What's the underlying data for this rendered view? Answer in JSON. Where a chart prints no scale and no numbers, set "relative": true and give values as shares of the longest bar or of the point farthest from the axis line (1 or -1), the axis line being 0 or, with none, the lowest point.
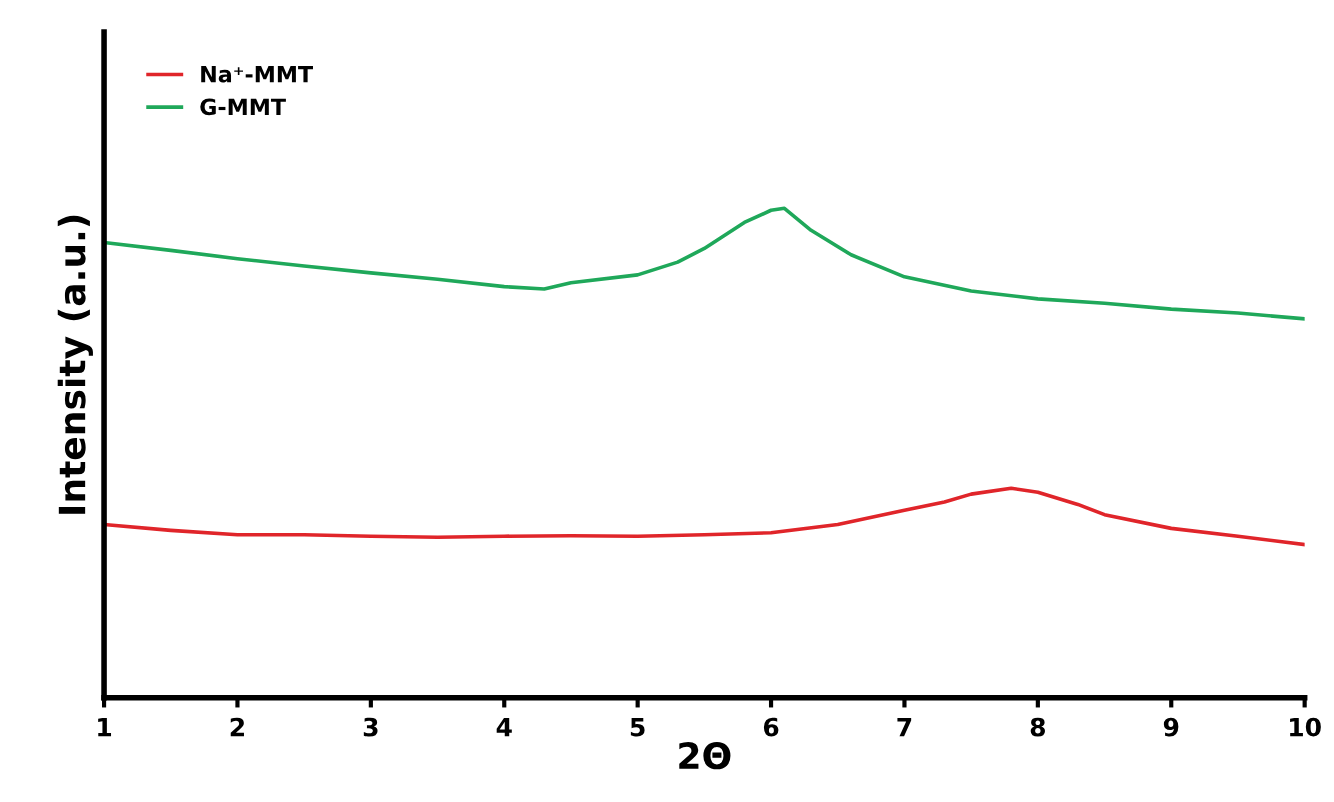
{
  "chart_data": {
    "type": "line",
    "relative": true,
    "xlabel": "2Θ",
    "ylabel": "Intensity (a.u.)",
    "xlim": [
      1,
      10
    ],
    "xticks": [
      1,
      2,
      3,
      4,
      5,
      6,
      7,
      8,
      9,
      10
    ],
    "legend": "top left",
    "grid": false,
    "series": [
      {
        "name": "Na⁺-MMT",
        "color": "#e0252a",
        "x": [
          1,
          1.5,
          2,
          2.5,
          3,
          3.5,
          4,
          4.5,
          5,
          5.5,
          6,
          6.5,
          7,
          7.3,
          7.5,
          7.8,
          8,
          8.3,
          8.5,
          9,
          9.5,
          10
        ],
        "values": [
          0.354,
          0.342,
          0.333,
          0.333,
          0.33,
          0.328,
          0.33,
          0.331,
          0.33,
          0.333,
          0.337,
          0.354,
          0.383,
          0.4,
          0.416,
          0.428,
          0.42,
          0.395,
          0.374,
          0.346,
          0.33,
          0.313
        ]
      },
      {
        "name": "G-MMT",
        "color": "#1fa85a",
        "x": [
          1,
          1.5,
          2,
          2.5,
          3,
          3.5,
          4,
          4.3,
          4.5,
          5,
          5.3,
          5.5,
          5.8,
          6,
          6.1,
          6.3,
          6.6,
          7,
          7.5,
          8,
          8.5,
          9,
          9.5,
          10
        ],
        "values": [
          0.93,
          0.914,
          0.897,
          0.882,
          0.868,
          0.855,
          0.84,
          0.835,
          0.848,
          0.864,
          0.89,
          0.918,
          0.971,
          0.996,
          1.0,
          0.955,
          0.905,
          0.86,
          0.831,
          0.815,
          0.806,
          0.794,
          0.786,
          0.774
        ]
      }
    ]
  }
}
